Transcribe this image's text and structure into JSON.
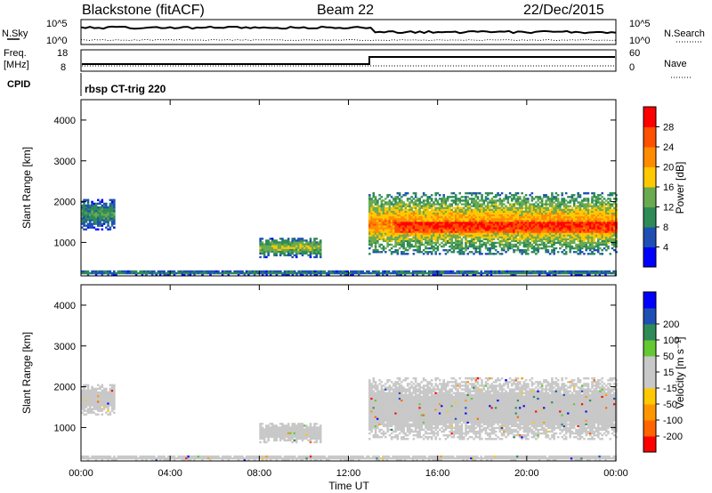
{
  "header": {
    "radar": "Blackstone (fitACF)",
    "beam": "Beam 22",
    "date": "22/Dec/2015"
  },
  "top_panel": {
    "nsky_label": "N.Sky",
    "nsearch_label": "N.Search",
    "freq_label_1": "Freq.",
    "freq_label_2": "[MHz]",
    "nave_label": "Nave",
    "cpid_label": "CPID",
    "cpid_value": "rbsp CT-trig 220",
    "noise_ticks_left": [
      "10^5",
      "10^0"
    ],
    "noise_ticks_right": [
      "10^5",
      "10^0"
    ],
    "freq_ticks": [
      "18",
      "8"
    ],
    "nave_ticks": [
      "60",
      "0"
    ]
  },
  "colors": {
    "power_scale": [
      "#0000ff",
      "#1e50b4",
      "#2e8b57",
      "#6aaa50",
      "#ffc800",
      "#ff8c00",
      "#ff5000",
      "#ff0000"
    ],
    "velocity_scale": [
      "#ff0000",
      "#ff6400",
      "#ff9600",
      "#ffc800",
      "#c8c8c8",
      "#c8c8c8",
      "#64c832",
      "#2e8b57",
      "#1e50b4",
      "#0000ff"
    ],
    "ground_scatter": "#c8c8c8"
  },
  "chart_data": [
    {
      "type": "heatmap",
      "panel": "power",
      "xlabel": "",
      "ylabel": "Slant Range [km]",
      "x_ticks": [
        "00:00",
        "04:00",
        "08:00",
        "12:00",
        "16:00",
        "20:00",
        "00:00"
      ],
      "y_ticks": [
        "1000",
        "2000",
        "3000",
        "4000"
      ],
      "xlim_hours": [
        0,
        24
      ],
      "ylim_km": [
        180,
        4500
      ],
      "colorbar": {
        "label": "Power [dB]",
        "ticks": [
          "4",
          "8",
          "12",
          "16",
          "20",
          "24",
          "28"
        ],
        "range": [
          0,
          30
        ]
      },
      "regions": [
        {
          "t0": 0.0,
          "t1": 1.5,
          "r0": 1300,
          "r1": 2050,
          "level": 9
        },
        {
          "t0": 8.0,
          "t1": 10.7,
          "r0": 620,
          "r1": 1100,
          "level": 13
        },
        {
          "t0": 12.9,
          "t1": 24.0,
          "r0": 700,
          "r1": 2200,
          "level": 18
        },
        {
          "t0": 0.0,
          "t1": 24.0,
          "r0": 180,
          "r1": 300,
          "level": 8
        }
      ]
    },
    {
      "type": "heatmap",
      "panel": "velocity",
      "xlabel": "Time UT",
      "ylabel": "Slant Range [km]",
      "x_ticks": [
        "00:00",
        "04:00",
        "08:00",
        "12:00",
        "16:00",
        "20:00",
        "00:00"
      ],
      "y_ticks": [
        "1000",
        "2000",
        "3000",
        "4000"
      ],
      "xlim_hours": [
        0,
        24
      ],
      "ylim_km": [
        180,
        4500
      ],
      "colorbar": {
        "label": "Velocity [m s⁻¹]",
        "ticks": [
          "-200",
          "-100",
          "-50",
          "-15",
          "15",
          "50",
          "100",
          "200"
        ],
        "range": [
          -250,
          250
        ]
      },
      "regions": [
        {
          "t0": 0.0,
          "t1": 1.5,
          "r0": 1300,
          "r1": 2050,
          "level": 0
        },
        {
          "t0": 8.0,
          "t1": 10.7,
          "r0": 620,
          "r1": 1100,
          "level": 0
        },
        {
          "t0": 12.9,
          "t1": 24.0,
          "r0": 700,
          "r1": 2200,
          "level": 0
        },
        {
          "t0": 0.0,
          "t1": 24.0,
          "r0": 180,
          "r1": 300,
          "level": 0
        }
      ]
    }
  ]
}
